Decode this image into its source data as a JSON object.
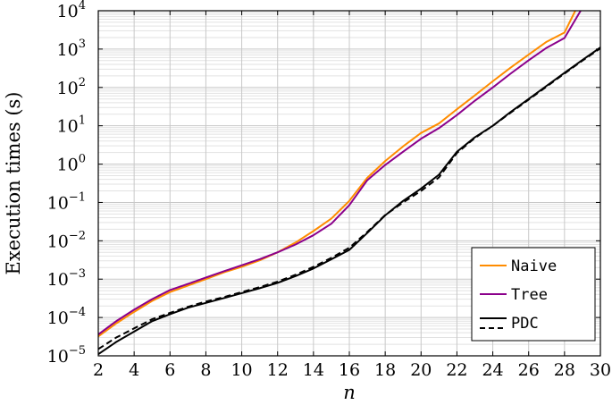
{
  "chart_data": {
    "type": "line",
    "xlabel": "n",
    "ylabel": "Execution times (s)",
    "xlim": [
      2,
      30
    ],
    "ylim": [
      1e-05,
      10000
    ],
    "yscale": "log",
    "xticks": [
      2,
      4,
      6,
      8,
      10,
      12,
      14,
      16,
      18,
      20,
      22,
      24,
      26,
      28,
      30
    ],
    "yticks": [
      {
        "base": "10",
        "exp": "−5",
        "value": 1e-05
      },
      {
        "base": "10",
        "exp": "−4",
        "value": 0.0001
      },
      {
        "base": "10",
        "exp": "−3",
        "value": 0.001
      },
      {
        "base": "10",
        "exp": "−2",
        "value": 0.01
      },
      {
        "base": "10",
        "exp": "−1",
        "value": 0.1
      },
      {
        "base": "10",
        "exp": "0",
        "value": 1
      },
      {
        "base": "10",
        "exp": "1",
        "value": 10
      },
      {
        "base": "10",
        "exp": "2",
        "value": 100
      },
      {
        "base": "10",
        "exp": "3",
        "value": 1000
      },
      {
        "base": "10",
        "exp": "4",
        "value": 10000
      }
    ],
    "grid": true,
    "legend_position": "bottom-right",
    "series": [
      {
        "name": "Naive",
        "color": "#ff8c00",
        "dash": "solid",
        "points": [
          [
            2,
            3.2e-05
          ],
          [
            3,
            7e-05
          ],
          [
            4,
            0.00014
          ],
          [
            5,
            0.00027
          ],
          [
            6,
            0.00046
          ],
          [
            7,
            0.00068
          ],
          [
            8,
            0.001
          ],
          [
            9,
            0.0015
          ],
          [
            10,
            0.0021
          ],
          [
            11,
            0.0031
          ],
          [
            12,
            0.005
          ],
          [
            13,
            0.009
          ],
          [
            14,
            0.018
          ],
          [
            15,
            0.038
          ],
          [
            16,
            0.11
          ],
          [
            17,
            0.44
          ],
          [
            18,
            1.2
          ],
          [
            19,
            2.9
          ],
          [
            20,
            6.5
          ],
          [
            21,
            11.5
          ],
          [
            22,
            27
          ],
          [
            23,
            62
          ],
          [
            24,
            145
          ],
          [
            25,
            330
          ],
          [
            26,
            720
          ],
          [
            27,
            1550
          ],
          [
            28,
            2700
          ],
          [
            28.6,
            10000
          ]
        ]
      },
      {
        "name": "Tree",
        "color": "#8b008b",
        "dash": "solid",
        "points": [
          [
            2,
            3.6e-05
          ],
          [
            3,
            8e-05
          ],
          [
            4,
            0.00016
          ],
          [
            5,
            0.0003
          ],
          [
            6,
            0.00052
          ],
          [
            7,
            0.00075
          ],
          [
            8,
            0.0011
          ],
          [
            9,
            0.0016
          ],
          [
            10,
            0.0023
          ],
          [
            11,
            0.0033
          ],
          [
            12,
            0.005
          ],
          [
            13,
            0.008
          ],
          [
            14,
            0.014
          ],
          [
            15,
            0.028
          ],
          [
            16,
            0.085
          ],
          [
            17,
            0.38
          ],
          [
            18,
            0.95
          ],
          [
            19,
            2.1
          ],
          [
            20,
            4.6
          ],
          [
            21,
            8.7
          ],
          [
            22,
            19
          ],
          [
            23,
            45
          ],
          [
            24,
            100
          ],
          [
            25,
            230
          ],
          [
            26,
            510
          ],
          [
            27,
            1080
          ],
          [
            28,
            1950
          ],
          [
            28.9,
            10000
          ]
        ]
      },
      {
        "name": "PDC",
        "color": "#000000",
        "dash": "solid",
        "points": [
          [
            2,
            1.1e-05
          ],
          [
            3,
            2.3e-05
          ],
          [
            4,
            4.3e-05
          ],
          [
            5,
            8e-05
          ],
          [
            6,
            0.000122
          ],
          [
            7,
            0.00018
          ],
          [
            8,
            0.00024
          ],
          [
            9,
            0.00032
          ],
          [
            10,
            0.00043
          ],
          [
            11,
            0.00058
          ],
          [
            12,
            0.0008
          ],
          [
            13,
            0.0012
          ],
          [
            14,
            0.0019
          ],
          [
            15,
            0.0033
          ],
          [
            16,
            0.0058
          ],
          [
            17,
            0.016
          ],
          [
            18,
            0.046
          ],
          [
            19,
            0.11
          ],
          [
            20,
            0.23
          ],
          [
            21,
            0.53
          ],
          [
            22,
            2.1
          ],
          [
            23,
            5
          ],
          [
            24,
            10
          ],
          [
            25,
            23
          ],
          [
            26,
            50
          ],
          [
            27,
            110
          ],
          [
            28,
            240
          ],
          [
            29,
            520
          ],
          [
            30,
            1100
          ]
        ]
      },
      {
        "name": "PDC",
        "color": "#000000",
        "dash": "dashed",
        "points": [
          [
            2,
            1.5e-05
          ],
          [
            3,
            3e-05
          ],
          [
            4,
            5.2e-05
          ],
          [
            5,
            9e-05
          ],
          [
            6,
            0.000132
          ],
          [
            7,
            0.00019
          ],
          [
            8,
            0.00026
          ],
          [
            9,
            0.00034
          ],
          [
            10,
            0.00046
          ],
          [
            11,
            0.00062
          ],
          [
            12,
            0.00086
          ],
          [
            13,
            0.0013
          ],
          [
            14,
            0.0021
          ],
          [
            15,
            0.0036
          ],
          [
            16,
            0.0066
          ],
          [
            17,
            0.017
          ],
          [
            18,
            0.047
          ],
          [
            19,
            0.1
          ],
          [
            20,
            0.2
          ],
          [
            21,
            0.45
          ],
          [
            22,
            1.95
          ],
          [
            23,
            4.8
          ],
          [
            24,
            10
          ],
          [
            25,
            22
          ],
          [
            26,
            48
          ],
          [
            27,
            105
          ],
          [
            28,
            230
          ],
          [
            29,
            500
          ],
          [
            30,
            1050
          ]
        ]
      }
    ],
    "legend": [
      {
        "label": "Naive",
        "color": "#ff8c00",
        "dash": "solid"
      },
      {
        "label": "Tree",
        "color": "#8b008b",
        "dash": "solid"
      },
      {
        "label": "PDC",
        "color": "#000000",
        "dash": "solid+dashed"
      }
    ]
  }
}
